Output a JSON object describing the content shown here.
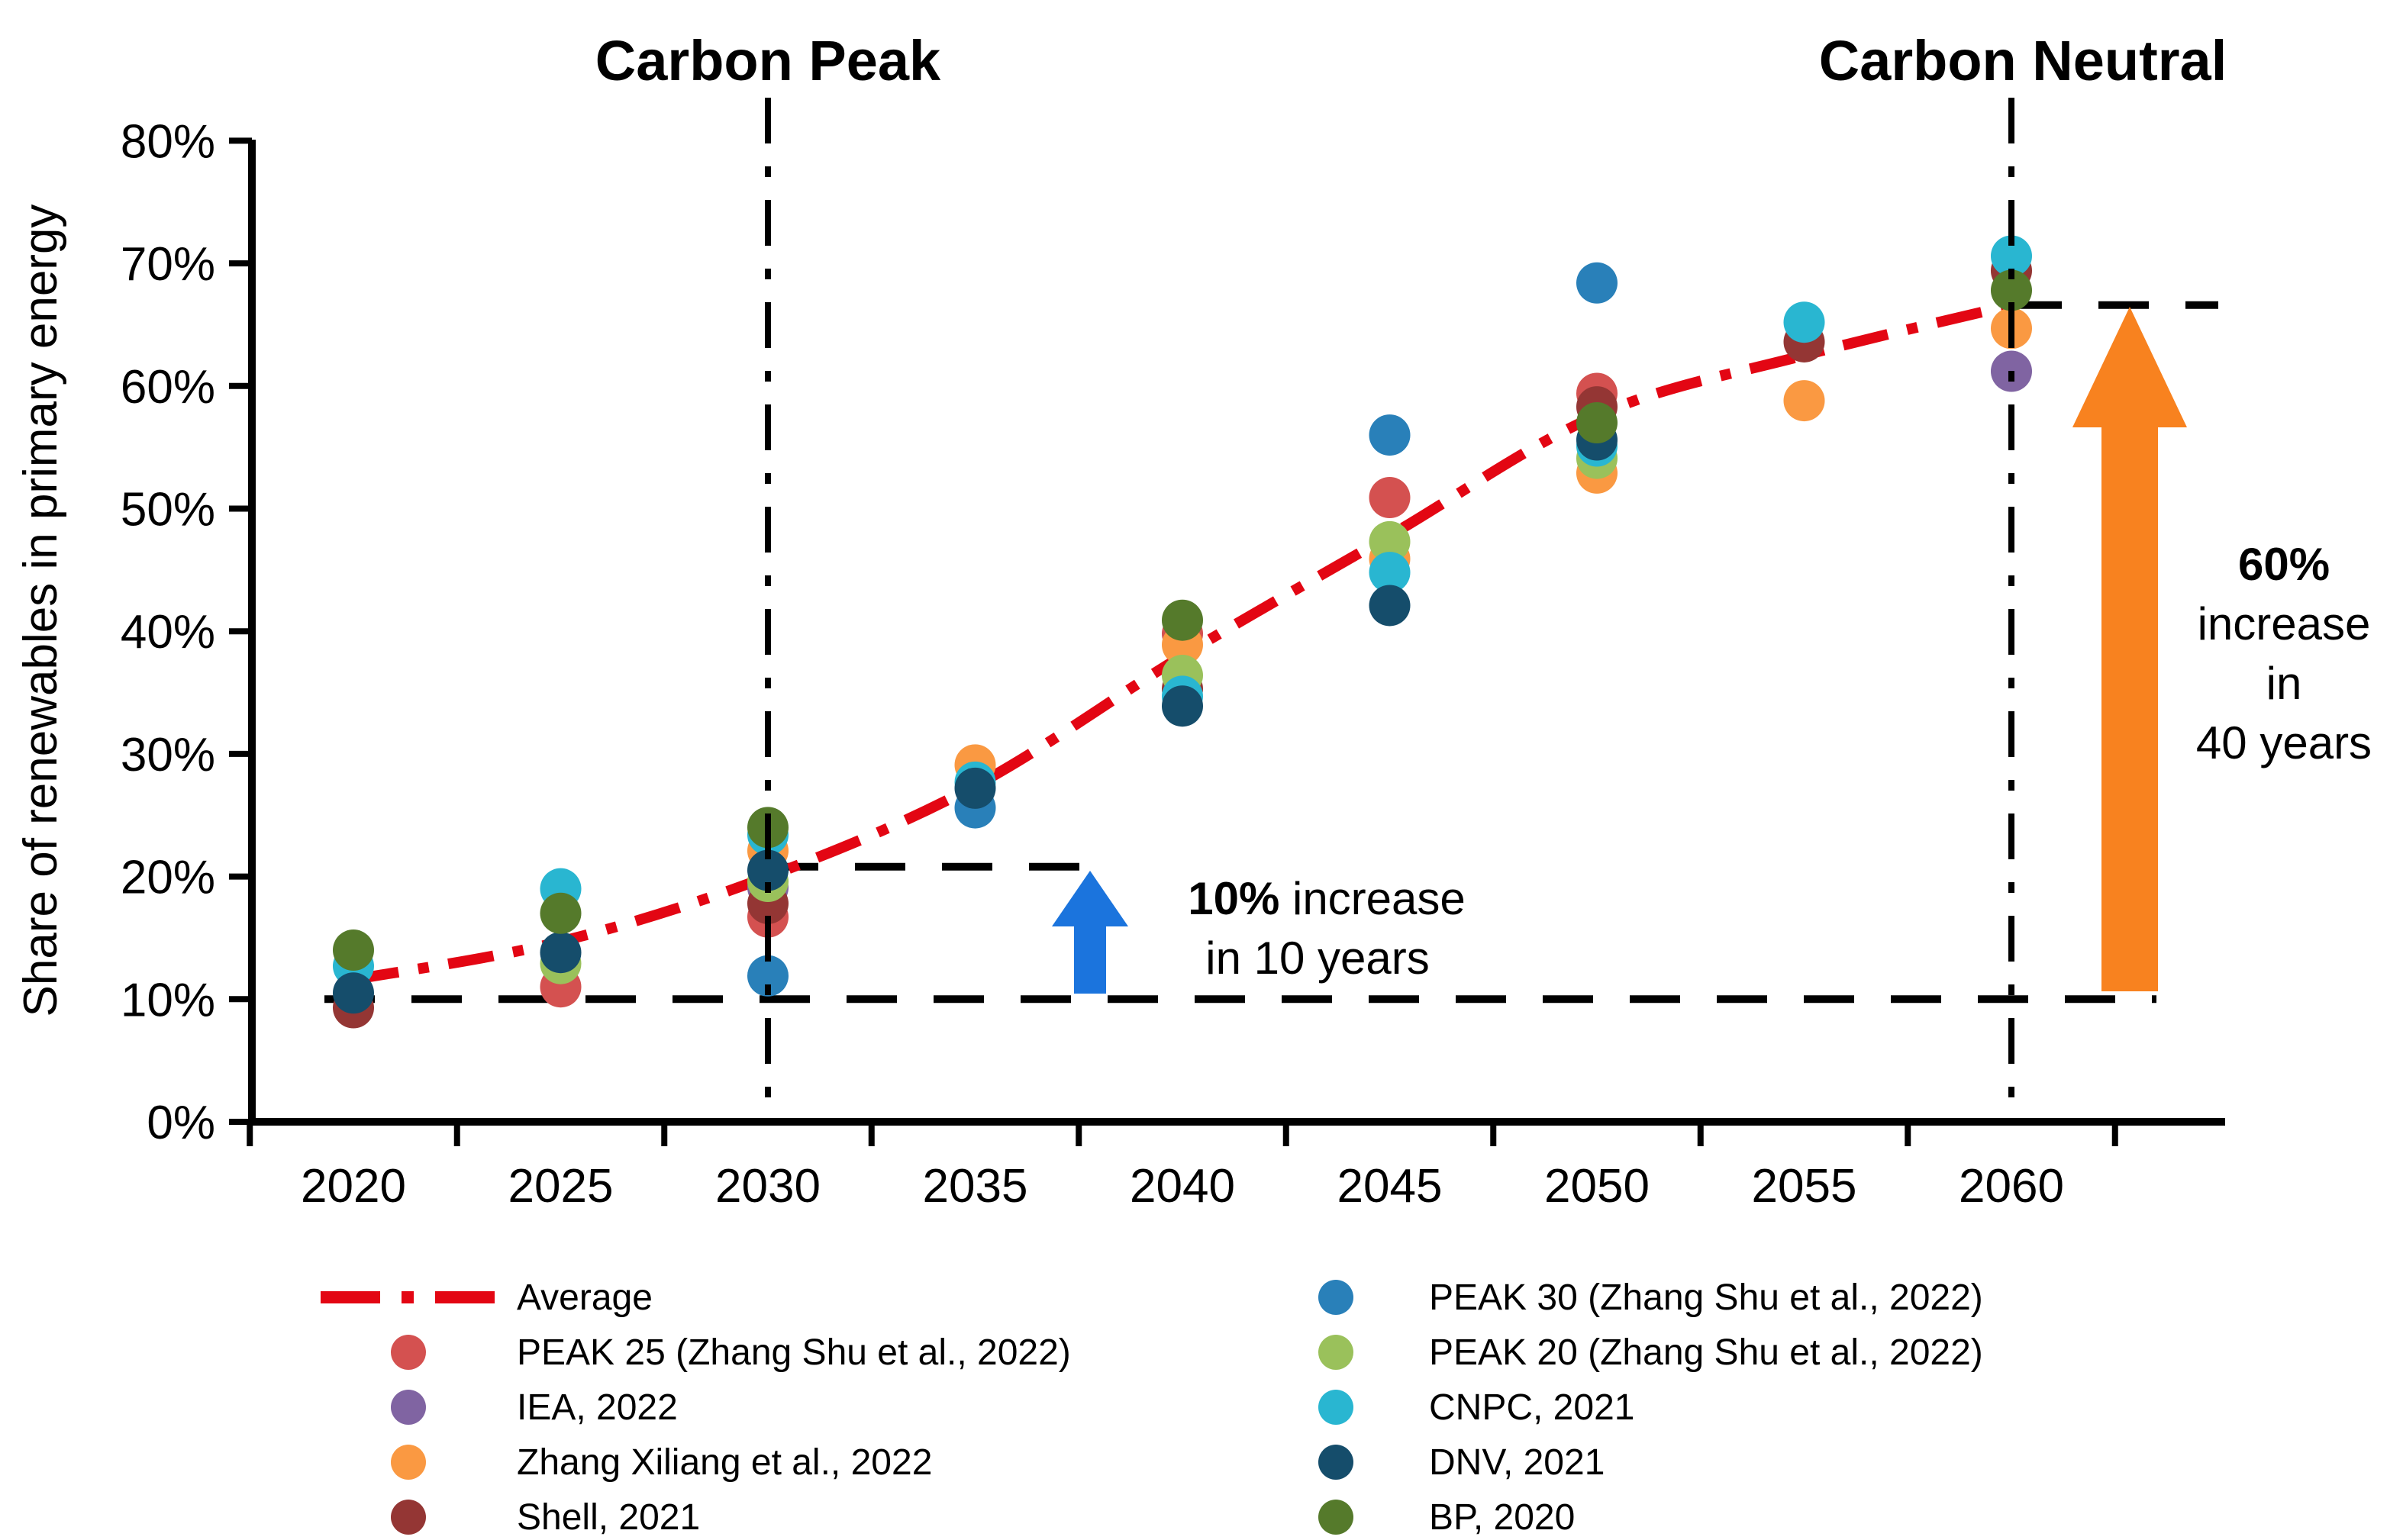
{
  "page": {
    "background": "#ffffff"
  },
  "chart_data": {
    "type": "scatter",
    "ylabel": "Share of renewables in primary energy",
    "x_categories": [
      "2020",
      "2025",
      "2030",
      "2035",
      "2040",
      "2045",
      "2050",
      "2055",
      "2060"
    ],
    "ylim": [
      0,
      80
    ],
    "ytick_step": 10,
    "ytick_suffix": "%",
    "grid": false,
    "legend_position": "bottom",
    "average_series": {
      "name": "Average",
      "color": "#e30613",
      "x": [
        2020,
        2025,
        2030,
        2035,
        2040,
        2045,
        2050,
        2055,
        2060
      ],
      "values": [
        11.6,
        14.7,
        20.0,
        27.4,
        38.0,
        47.8,
        57.6,
        62.5,
        66.6
      ]
    },
    "series": [
      {
        "name": "PEAK 25 (Zhang Shu et al., 2022)",
        "color": "#d45150",
        "points": [
          [
            2025,
            11.0
          ],
          [
            2030,
            16.7
          ],
          [
            2040,
            39.8
          ],
          [
            2045,
            50.9
          ],
          [
            2050,
            59.4
          ]
        ]
      },
      {
        "name": "IEA, 2022",
        "color": "#8064a2",
        "points": [
          [
            2030,
            19.1
          ],
          [
            2060,
            61.2
          ]
        ]
      },
      {
        "name": "Zhang Xiliang et al., 2022",
        "color": "#fa9942",
        "points": [
          [
            2030,
            22.1
          ],
          [
            2035,
            29.1
          ],
          [
            2040,
            38.9
          ],
          [
            2045,
            45.9
          ],
          [
            2050,
            52.9
          ],
          [
            2055,
            58.8
          ],
          [
            2060,
            64.7
          ]
        ]
      },
      {
        "name": "Shell, 2021",
        "color": "#943634",
        "points": [
          [
            2020,
            9.3
          ],
          [
            2030,
            17.8
          ],
          [
            2040,
            35.3
          ],
          [
            2050,
            58.3
          ],
          [
            2055,
            63.6
          ],
          [
            2060,
            69.4
          ]
        ]
      },
      {
        "name": "PEAK 30 (Zhang Shu et al., 2022)",
        "color": "#2980b9",
        "points": [
          [
            2030,
            11.9
          ],
          [
            2035,
            25.6
          ],
          [
            2045,
            56.0
          ],
          [
            2050,
            68.4
          ]
        ]
      },
      {
        "name": "PEAK 20 (Zhang Shu et al., 2022)",
        "color": "#9ac15b",
        "points": [
          [
            2025,
            12.9
          ],
          [
            2030,
            19.6
          ],
          [
            2040,
            36.4
          ],
          [
            2045,
            47.3
          ],
          [
            2050,
            54.1
          ]
        ]
      },
      {
        "name": "CNPC, 2021",
        "color": "#29b6d1",
        "points": [
          [
            2020,
            12.7
          ],
          [
            2025,
            19.0
          ],
          [
            2030,
            23.4
          ],
          [
            2035,
            27.7
          ],
          [
            2040,
            34.7
          ],
          [
            2045,
            44.8
          ],
          [
            2050,
            55.1
          ],
          [
            2055,
            65.2
          ],
          [
            2060,
            70.6
          ]
        ]
      },
      {
        "name": "DNV, 2021",
        "color": "#154d6b",
        "points": [
          [
            2020,
            10.5
          ],
          [
            2025,
            13.8
          ],
          [
            2030,
            20.5
          ],
          [
            2035,
            27.2
          ],
          [
            2040,
            33.9
          ],
          [
            2045,
            42.1
          ],
          [
            2050,
            55.6
          ]
        ]
      },
      {
        "name": "BP, 2020",
        "color": "#557a2b",
        "points": [
          [
            2020,
            14.0
          ],
          [
            2025,
            17.0
          ],
          [
            2030,
            24.0
          ],
          [
            2040,
            40.9
          ],
          [
            2050,
            57.0
          ],
          [
            2060,
            67.8
          ]
        ]
      }
    ],
    "annotations": {
      "vlines": [
        {
          "year": 2030,
          "label": "Carbon Peak"
        },
        {
          "year": 2060,
          "label": "Carbon Neutral"
        }
      ],
      "hlines": [
        {
          "value": 10
        },
        {
          "value": 20.8
        },
        {
          "value": 66.6
        }
      ],
      "blue_arrow": {
        "color": "#1b74dd",
        "bold": "10%",
        "rest": " increase",
        "line2": "in 10 years"
      },
      "orange_arrow": {
        "color": "#f8821f",
        "lines": [
          "60%",
          "increase",
          "in",
          "40 years"
        ]
      }
    }
  },
  "legend": {
    "left": [
      {
        "type": "line",
        "label": "Average",
        "color": "#e30613"
      },
      {
        "type": "dot",
        "label": "PEAK 25 (Zhang Shu et al., 2022)",
        "color": "#d45150"
      },
      {
        "type": "dot",
        "label": "IEA, 2022",
        "color": "#8064a2"
      },
      {
        "type": "dot",
        "label": "Zhang Xiliang et al., 2022",
        "color": "#fa9942"
      },
      {
        "type": "dot",
        "label": "Shell, 2021",
        "color": "#943634"
      }
    ],
    "right": [
      {
        "type": "dot",
        "label": "PEAK 30 (Zhang Shu et al., 2022)",
        "color": "#2980b9"
      },
      {
        "type": "dot",
        "label": "PEAK 20 (Zhang Shu et al., 2022)",
        "color": "#9ac15b"
      },
      {
        "type": "dot",
        "label": "CNPC, 2021",
        "color": "#29b6d1"
      },
      {
        "type": "dot",
        "label": "DNV, 2021",
        "color": "#154d6b"
      },
      {
        "type": "dot",
        "label": "BP, 2020",
        "color": "#557a2b"
      }
    ]
  }
}
